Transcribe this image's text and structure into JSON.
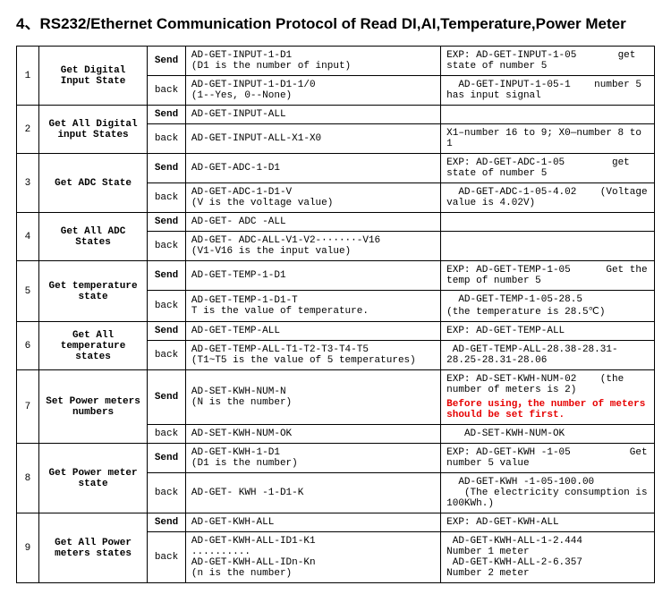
{
  "title": "4、RS232/Ethernet Communication Protocol of Read DI,AI,Temperature,Power Meter",
  "send": "Send",
  "back": "back",
  "r": {
    "1": {
      "num": "1",
      "desc": "Get Digital Input State",
      "sendCmd": "AD-GET-INPUT-1-D1",
      "sendHint": "(D1 is the number of input)",
      "sendExA": "EXP: AD-GET-INPUT-1-05",
      "sendExB": "get state of number 5",
      "backCmd": "AD-GET-INPUT-1-D1-1/0",
      "backHint": "(1--Yes, 0--None)",
      "backExA": "AD-GET-INPUT-1-05-1",
      "backExB": "number 5 has input signal"
    },
    "2": {
      "num": "2",
      "desc": "Get All Digital input States",
      "sendCmd": "AD-GET-INPUT-ALL",
      "backCmd": "AD-GET-INPUT-ALL-X1-X0",
      "backEx": "X1–number 16 to 9;  X0—number 8 to 1"
    },
    "3": {
      "num": "3",
      "desc": "Get ADC State",
      "sendCmd": "AD-GET-ADC-1-D1",
      "sendExA": "EXP: AD-GET-ADC-1-05",
      "sendExB": "get state of number 5",
      "backCmd": "AD-GET-ADC-1-D1-V",
      "backHint": "(V is the voltage value)",
      "backExA": "AD-GET-ADC-1-05-4.02",
      "backExB": "(Voltage value is 4.02V)"
    },
    "4": {
      "num": "4",
      "desc": "Get All ADC States",
      "sendCmd": "AD-GET- ADC -ALL",
      "backL1": "AD-GET- ADC-ALL-V1-V2-······-V16",
      "backL2": "(V1-V16 is the input value)"
    },
    "5": {
      "num": "5",
      "desc": "Get temperature state",
      "sendCmd": "AD-GET-TEMP-1-D1",
      "sendExA": "EXP: AD-GET-TEMP-1-05",
      "sendExB": "Get the temp of number 5",
      "backL1": "AD-GET-TEMP-1-D1-T",
      "backL2": "T is the value of temperature.",
      "backExA": "AD-GET-TEMP-1-05-28.5",
      "backExB": "(the temperature is 28.5℃)"
    },
    "6": {
      "num": "6",
      "desc": "Get All temperature states",
      "sendCmd": "AD-GET-TEMP-ALL",
      "sendEx": "EXP: AD-GET-TEMP-ALL",
      "backL1": "AD-GET-TEMP-ALL-T1-T2-T3-T4-T5",
      "backL2": "(T1~T5 is the value of 5 temperatures)",
      "backEx": "AD-GET-TEMP-ALL-28.38-28.31-28.25-28.31-28.06"
    },
    "7": {
      "num": "7",
      "desc": "Set Power meters numbers",
      "sendCmd": "AD-SET-KWH-NUM-N",
      "sendHint": "(N is the number)",
      "sendExA": "EXP: AD-SET-KWH-NUM-02",
      "sendExB": "(the number of meters is 2)",
      "sendRed": "Before using，the number of meters should be set first.",
      "backCmd": "AD-SET-KWH-NUM-OK",
      "backEx": "AD-SET-KWH-NUM-OK"
    },
    "8": {
      "num": "8",
      "desc": "Get Power meter state",
      "sendCmd": "AD-GET-KWH-1-D1",
      "sendHint": "(D1 is the number)",
      "sendExA": "EXP: AD-GET-KWH -1-05",
      "sendExB": "Get number 5 value",
      "backCmd": "AD-GET- KWH -1-D1-K",
      "backExA": "AD-GET-KWH -1-05-100.00",
      "backExB": "(The electricity consumption is 100KWh.)"
    },
    "9": {
      "num": "9",
      "desc": "Get All Power meters states",
      "sendCmd": "AD-GET-KWH-ALL",
      "sendEx": "EXP: AD-GET-KWH-ALL",
      "backL1": "AD-GET-KWH-ALL-ID1-K1",
      "backL2": "..........",
      "backL3": "AD-GET-KWH-ALL-IDn-Kn",
      "backHint": "(n is the number)",
      "backExA1": "AD-GET-KWH-ALL-1-2.444",
      "backExA2": "Number 1 meter",
      "backExB1": "AD-GET-KWH-ALL-2-6.357",
      "backExB2": "Number 2 meter"
    }
  }
}
